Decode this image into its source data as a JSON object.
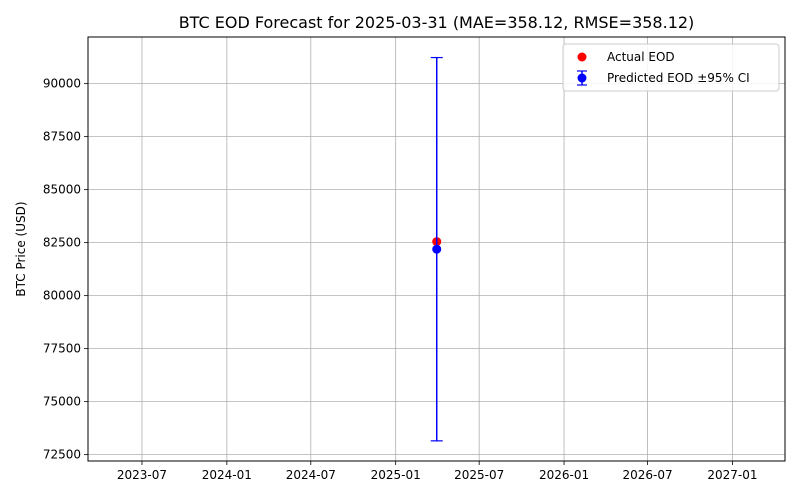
{
  "chart_data": {
    "type": "scatter",
    "title": "BTC EOD Forecast for 2025-03-31 (MAE=358.12, RMSE=358.12)",
    "xlabel": "",
    "ylabel": "BTC Price (USD)",
    "xlim": [
      "2023-03-06",
      "2027-04-25"
    ],
    "ylim": [
      72200,
      92200
    ],
    "x_ticks": [
      "2023-07",
      "2024-01",
      "2024-07",
      "2025-01",
      "2025-07",
      "2026-01",
      "2026-07",
      "2027-01"
    ],
    "x_tick_dates": [
      "2023-07-01",
      "2024-01-01",
      "2024-07-01",
      "2025-01-01",
      "2025-07-01",
      "2026-01-01",
      "2026-07-01",
      "2027-01-01"
    ],
    "y_ticks": [
      72500,
      75000,
      77500,
      80000,
      82500,
      85000,
      87500,
      90000
    ],
    "grid": true,
    "legend_position": "top-right",
    "series": [
      {
        "name": "Actual EOD",
        "kind": "scatter",
        "color": "#ff0000",
        "points": [
          {
            "x": "2025-03-31",
            "y": 82550
          }
        ]
      },
      {
        "name": "Predicted EOD ±95% CI",
        "kind": "errorbar",
        "color": "#0000ff",
        "points": [
          {
            "x": "2025-03-31",
            "y": 82190,
            "y_low": 73150,
            "y_high": 91230
          }
        ]
      }
    ]
  }
}
